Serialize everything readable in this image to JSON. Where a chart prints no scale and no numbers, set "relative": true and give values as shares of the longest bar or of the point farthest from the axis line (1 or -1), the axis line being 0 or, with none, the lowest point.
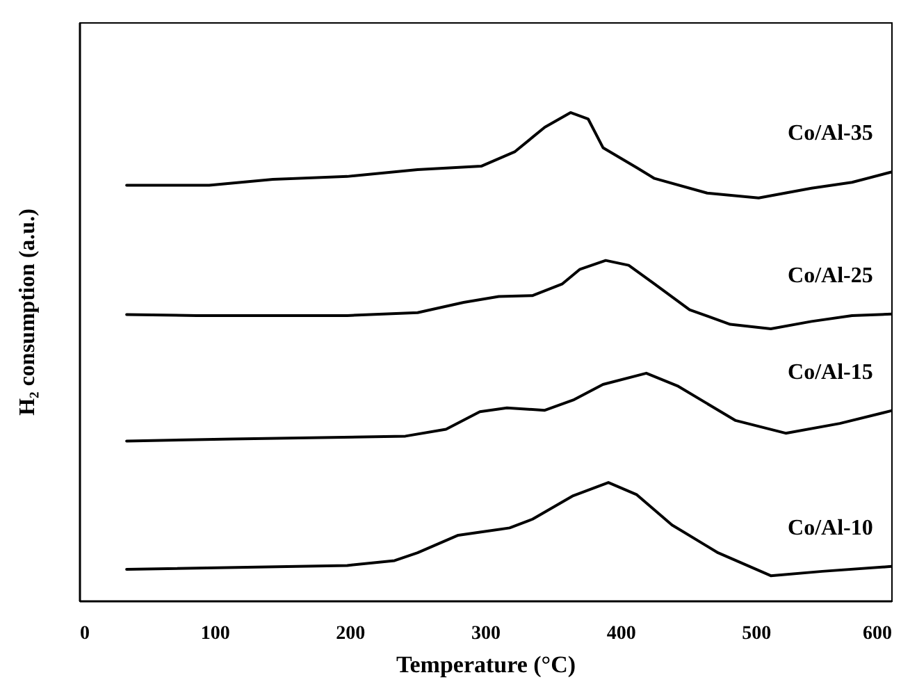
{
  "chart_data": {
    "type": "line",
    "relative": true,
    "xlabel": "Temperature (°C)",
    "ylabel": "H₂ consumption (a.u.)",
    "xlim": [
      0,
      600
    ],
    "xticks": [
      0,
      100,
      200,
      300,
      400,
      500,
      600
    ],
    "grid": false,
    "legend": false,
    "marker": "none",
    "line_style": "solid",
    "series": [
      {
        "name": "Co/Al-35",
        "color": "#000000",
        "x": [
          35,
          96,
          143,
          198,
          250,
          297,
          322,
          344,
          363,
          376,
          387,
          412,
          425,
          464,
          502,
          541,
          571,
          600
        ],
        "values": [
          0.851,
          0.851,
          0.863,
          0.869,
          0.883,
          0.89,
          0.92,
          0.97,
          1,
          0.987,
          0.928,
          0.887,
          0.865,
          0.835,
          0.825,
          0.845,
          0.857,
          0.878
        ]
      },
      {
        "name": "Co/Al-25",
        "color": "#000000",
        "x": [
          35,
          87,
          198,
          250,
          284,
          310,
          335,
          357,
          370,
          389,
          406,
          425,
          451,
          481,
          511,
          541,
          571,
          600
        ],
        "values": [
          0.586,
          0.584,
          0.584,
          0.59,
          0.611,
          0.623,
          0.625,
          0.649,
          0.679,
          0.697,
          0.687,
          0.649,
          0.596,
          0.566,
          0.557,
          0.572,
          0.584,
          0.587
        ]
      },
      {
        "name": "Co/Al-15",
        "color": "#000000",
        "x": [
          35,
          113,
          241,
          271,
          296,
          316,
          344,
          365,
          387,
          419,
          442,
          485,
          522,
          562,
          600
        ],
        "values": [
          0.327,
          0.331,
          0.337,
          0.351,
          0.387,
          0.395,
          0.39,
          0.411,
          0.443,
          0.466,
          0.44,
          0.369,
          0.343,
          0.363,
          0.389
        ]
      },
      {
        "name": "Co/Al-10",
        "color": "#000000",
        "x": [
          35,
          198,
          233,
          250,
          280,
          318,
          335,
          365,
          391,
          412,
          438,
          472,
          511,
          549,
          600
        ],
        "values": [
          0.064,
          0.072,
          0.082,
          0.098,
          0.134,
          0.149,
          0.167,
          0.215,
          0.242,
          0.217,
          0.155,
          0.098,
          0.051,
          0.06,
          0.07
        ]
      }
    ]
  }
}
